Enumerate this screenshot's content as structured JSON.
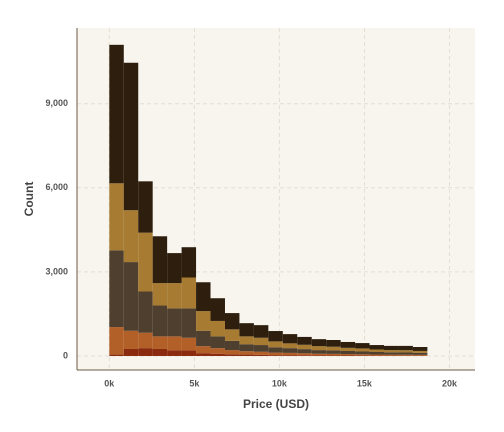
{
  "chart_data": {
    "type": "stacked-histogram",
    "xlabel": "Price (USD)",
    "ylabel": "Count",
    "bins": [
      0,
      850,
      1700,
      2550,
      3400,
      4250,
      5100,
      5950,
      6800,
      7650,
      8500,
      9350,
      10200,
      11050,
      11900,
      12750,
      13600,
      14450,
      15300,
      16150,
      17000,
      17850,
      18700
    ],
    "series": [
      {
        "color": "#8a2b10",
        "values": [
          50,
          250,
          280,
          250,
          200,
          200,
          100,
          80,
          60,
          50,
          40,
          30,
          30,
          25,
          20,
          20,
          18,
          15,
          12,
          12,
          10,
          10
        ]
      },
      {
        "color": "#b25f28",
        "values": [
          980,
          650,
          550,
          450,
          500,
          450,
          250,
          200,
          150,
          120,
          110,
          90,
          80,
          70,
          60,
          55,
          50,
          45,
          40,
          38,
          35,
          30
        ]
      },
      {
        "color": "#4e3f2e",
        "values": [
          2740,
          2450,
          1470,
          1100,
          1000,
          1050,
          550,
          420,
          330,
          250,
          240,
          190,
          170,
          150,
          130,
          125,
          110,
          100,
          90,
          80,
          80,
          70
        ]
      },
      {
        "color": "#a77b32",
        "values": [
          2390,
          1850,
          2100,
          800,
          900,
          1100,
          700,
          550,
          410,
          280,
          260,
          210,
          170,
          155,
          140,
          130,
          112,
          110,
          90,
          80,
          80,
          70
        ]
      },
      {
        "color": "#2d1e0d",
        "values": [
          4940,
          5260,
          1830,
          1670,
          1070,
          1080,
          1030,
          810,
          580,
          470,
          450,
          370,
          330,
          280,
          250,
          240,
          210,
          190,
          158,
          150,
          155,
          140
        ]
      }
    ],
    "xlim": [
      -1900,
      21500
    ],
    "ylim": [
      -500,
      11700
    ],
    "xticks": [
      {
        "value": 0,
        "label": "0k"
      },
      {
        "value": 5000,
        "label": "5k"
      },
      {
        "value": 10000,
        "label": "10k"
      },
      {
        "value": 15000,
        "label": "15k"
      },
      {
        "value": 20000,
        "label": "20k"
      }
    ],
    "yticks": [
      0,
      {
        "value": 3000,
        "label": "3,000"
      },
      {
        "value": 6000,
        "label": "6,000"
      },
      {
        "value": 9000,
        "label": "9,000"
      }
    ],
    "grid": true
  }
}
